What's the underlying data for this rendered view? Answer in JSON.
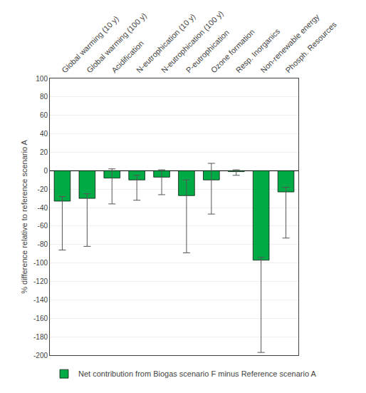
{
  "chart_data": {
    "type": "bar",
    "categories": [
      "Global warming (10 y)",
      "Global warming (100 y)",
      "Acidification",
      "N-eutrophication (10 y)",
      "N-eutrophication (100 y)",
      "P-eutrophication",
      "Ozone formation",
      "Resp. Inorganics",
      "Non-renewable energy",
      "Phosph. Resources"
    ],
    "series": [
      {
        "name": "Net contribution from Biogas scenario F minus Reference scenario A",
        "color": "#00aa44",
        "values": [
          -33,
          -30,
          -8,
          -10,
          -7,
          -27,
          -10,
          -1,
          -97,
          -23
        ],
        "error_lower": [
          53,
          52,
          28,
          22,
          19,
          62,
          37,
          4,
          100,
          50
        ],
        "error_upper": [
          5,
          5,
          10,
          5,
          8,
          17,
          18,
          2,
          3,
          5
        ]
      }
    ],
    "ylabel": "% difference relative to reference scenario A",
    "ylim": [
      -200,
      100
    ],
    "yticks": [
      -200,
      -180,
      -160,
      -140,
      -120,
      -100,
      -80,
      -60,
      -40,
      -20,
      0,
      20,
      40,
      60,
      80,
      100
    ],
    "grid": true,
    "legend": "lower left"
  }
}
